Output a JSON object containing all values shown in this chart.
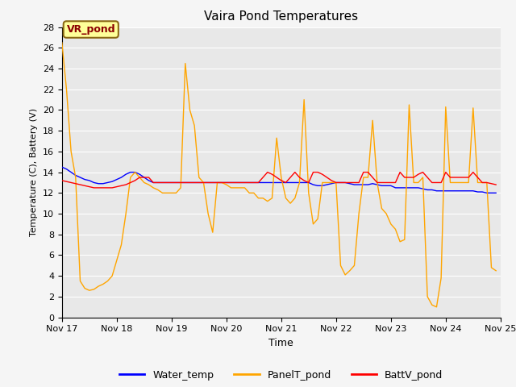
{
  "title": "Vaira Pond Temperatures",
  "xlabel": "Time",
  "ylabel": "Temperature (C), Battery (V)",
  "ylim": [
    0,
    28
  ],
  "yticks": [
    0,
    2,
    4,
    6,
    8,
    10,
    12,
    14,
    16,
    18,
    20,
    22,
    24,
    26,
    28
  ],
  "bg_color": "#e8e8e8",
  "annotation_text": "VR_pond",
  "annotation_color": "#8B0000",
  "annotation_bg": "#FFFF99",
  "annotation_border": "#8B6914",
  "water_temp": [
    14.5,
    14.3,
    14.0,
    13.7,
    13.5,
    13.3,
    13.2,
    13.0,
    12.9,
    12.9,
    13.0,
    13.1,
    13.3,
    13.5,
    13.8,
    14.0,
    14.0,
    13.8,
    13.5,
    13.2,
    13.0,
    13.0,
    13.0,
    13.0,
    13.0,
    13.0,
    13.0,
    13.0,
    13.0,
    13.0,
    13.0,
    13.0,
    13.0,
    13.0,
    13.0,
    13.0,
    13.0,
    13.0,
    13.0,
    13.0,
    13.0,
    13.0,
    13.0,
    13.0,
    13.0,
    13.0,
    13.0,
    13.0,
    13.0,
    13.0,
    13.0,
    13.0,
    13.0,
    13.0,
    13.0,
    12.8,
    12.7,
    12.7,
    12.8,
    12.9,
    13.0,
    13.0,
    13.0,
    12.9,
    12.8,
    12.8,
    12.8,
    12.8,
    12.9,
    12.8,
    12.7,
    12.7,
    12.7,
    12.5,
    12.5,
    12.5,
    12.5,
    12.5,
    12.5,
    12.4,
    12.3,
    12.3,
    12.2,
    12.2,
    12.2,
    12.2,
    12.2,
    12.2,
    12.2,
    12.2,
    12.2,
    12.1,
    12.1,
    12.0,
    12.0,
    12.0
  ],
  "panel_temp": [
    26.5,
    22.0,
    16.0,
    13.5,
    3.5,
    2.8,
    2.6,
    2.7,
    3.0,
    3.2,
    3.5,
    4.0,
    5.5,
    7.0,
    10.0,
    13.5,
    14.0,
    13.5,
    13.0,
    12.8,
    12.5,
    12.3,
    12.0,
    12.0,
    12.0,
    12.0,
    12.5,
    24.5,
    20.0,
    18.5,
    13.5,
    13.0,
    10.0,
    8.2,
    13.0,
    13.0,
    12.8,
    12.5,
    12.5,
    12.5,
    12.5,
    12.0,
    12.0,
    11.5,
    11.5,
    11.2,
    11.5,
    17.3,
    13.5,
    11.5,
    11.0,
    11.5,
    13.0,
    21.0,
    12.0,
    9.0,
    9.5,
    13.0,
    13.0,
    13.0,
    13.0,
    5.0,
    4.1,
    4.5,
    5.0,
    10.0,
    13.5,
    13.5,
    19.0,
    13.0,
    10.5,
    10.0,
    9.0,
    8.5,
    7.3,
    7.5,
    20.5,
    13.0,
    13.0,
    13.5,
    2.0,
    1.2,
    1.0,
    3.8,
    20.3,
    13.0,
    13.0,
    13.0,
    13.0,
    13.0,
    20.2,
    13.0,
    13.0,
    13.0,
    4.8,
    4.5
  ],
  "batt_temp": [
    13.2,
    13.1,
    13.0,
    12.9,
    12.8,
    12.7,
    12.6,
    12.5,
    12.5,
    12.5,
    12.5,
    12.5,
    12.6,
    12.7,
    12.8,
    13.0,
    13.2,
    13.5,
    13.5,
    13.5,
    13.0,
    13.0,
    13.0,
    13.0,
    13.0,
    13.0,
    13.0,
    13.0,
    13.0,
    13.0,
    13.0,
    13.0,
    13.0,
    13.0,
    13.0,
    13.0,
    13.0,
    13.0,
    13.0,
    13.0,
    13.0,
    13.0,
    13.0,
    13.0,
    13.5,
    14.0,
    13.8,
    13.5,
    13.2,
    13.0,
    13.5,
    14.0,
    13.5,
    13.2,
    13.0,
    14.0,
    14.0,
    13.8,
    13.5,
    13.2,
    13.0,
    13.0,
    13.0,
    13.0,
    13.0,
    13.0,
    14.0,
    14.0,
    13.5,
    13.0,
    13.0,
    13.0,
    13.0,
    13.0,
    14.0,
    13.5,
    13.5,
    13.5,
    13.8,
    14.0,
    13.5,
    13.0,
    13.0,
    13.0,
    14.0,
    13.5,
    13.5,
    13.5,
    13.5,
    13.5,
    14.0,
    13.5,
    13.0,
    13.0,
    12.9,
    12.8
  ],
  "n_points": 96,
  "day_ticks": [
    0,
    12,
    24,
    36,
    48,
    60,
    72,
    84,
    96
  ],
  "day_labels": [
    "Nov 17",
    "Nov 18",
    "Nov 19",
    "Nov 20",
    "Nov 21",
    "Nov 22",
    "Nov 23",
    "Nov 24",
    "Nov 25"
  ]
}
